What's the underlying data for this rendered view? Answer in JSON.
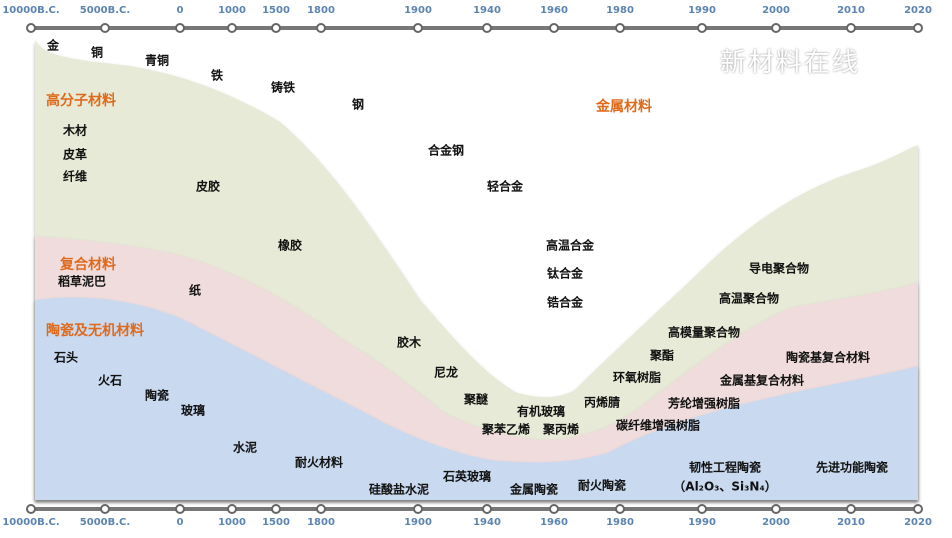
{
  "axis_labels": [
    "10000B.C.",
    "5000B.C.",
    "0",
    "1000",
    "1500",
    "1800",
    "1900",
    "1940",
    "1960",
    "1980",
    "1990",
    "2000",
    "2010",
    "2020"
  ],
  "categories": {
    "metal": "金属材料",
    "polymer": "高分子材料",
    "composite": "复合材料",
    "ceramic": "陶瓷及无机材料"
  },
  "colors": {
    "metal": "#ffffff",
    "polymer": "#e6ead6",
    "composite": "#f0dcdc",
    "ceramic": "#c9d9ef",
    "category_label": "#e06a1c",
    "axis": "#5b85b0"
  },
  "metals": [
    "金",
    "铜",
    "青铜",
    "铁",
    "铸铁",
    "钢",
    "合金钢",
    "轻合金",
    "高温合金",
    "钛合金",
    "锆合金"
  ],
  "polymers": [
    "木材",
    "皮革",
    "纤维",
    "皮胶",
    "橡胶",
    "胶木",
    "尼龙",
    "聚醚",
    "有机玻璃",
    "聚苯乙烯",
    "聚丙烯",
    "丙烯腈",
    "环氧树脂",
    "聚酯",
    "高模量聚合物",
    "高温聚合物",
    "导电聚合物"
  ],
  "composites": [
    "稻草泥巴",
    "纸",
    "碳纤维增强树脂",
    "芳纶增强树脂",
    "金属基复合材料",
    "陶瓷基复合材料"
  ],
  "ceramics": [
    "石头",
    "火石",
    "陶瓷",
    "玻璃",
    "水泥",
    "耐火材料",
    "硅酸盐水泥",
    "石英玻璃",
    "金属陶瓷",
    "耐火陶瓷",
    "韧性工程陶瓷",
    "（Al₂O₃、Si₃N₄）",
    "先进功能陶瓷"
  ],
  "watermark": "新材料在线"
}
